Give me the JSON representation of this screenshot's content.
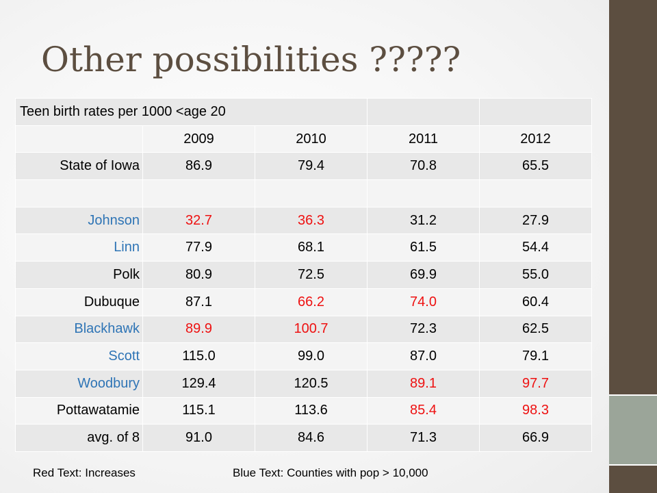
{
  "slide": {
    "title": "Other possibilities ?????"
  },
  "table": {
    "caption": "Teen birth rates per 1000 <age 20",
    "years": [
      "2009",
      "2010",
      "2011",
      "2012"
    ],
    "rows": [
      {
        "name": "State of Iowa",
        "name_color": "black",
        "values": [
          "86.9",
          "79.4",
          "70.8",
          "65.5"
        ],
        "value_colors": [
          "black",
          "black",
          "black",
          "black"
        ]
      },
      {
        "name": "",
        "name_color": "black",
        "values": [
          "",
          "",
          "",
          ""
        ],
        "value_colors": [
          "black",
          "black",
          "black",
          "black"
        ]
      },
      {
        "name": "Johnson",
        "name_color": "blue",
        "values": [
          "32.7",
          "36.3",
          "31.2",
          "27.9"
        ],
        "value_colors": [
          "red",
          "red",
          "black",
          "black"
        ]
      },
      {
        "name": "Linn",
        "name_color": "blue",
        "values": [
          "77.9",
          "68.1",
          "61.5",
          "54.4"
        ],
        "value_colors": [
          "black",
          "black",
          "black",
          "black"
        ]
      },
      {
        "name": "Polk",
        "name_color": "black",
        "values": [
          "80.9",
          "72.5",
          "69.9",
          "55.0"
        ],
        "value_colors": [
          "black",
          "black",
          "black",
          "black"
        ]
      },
      {
        "name": "Dubuque",
        "name_color": "black",
        "values": [
          "87.1",
          "66.2",
          "74.0",
          "60.4"
        ],
        "value_colors": [
          "black",
          "red",
          "red",
          "black"
        ]
      },
      {
        "name": "Blackhawk",
        "name_color": "blue",
        "values": [
          "89.9",
          "100.7",
          "72.3",
          "62.5"
        ],
        "value_colors": [
          "red",
          "red",
          "black",
          "black"
        ]
      },
      {
        "name": "Scott",
        "name_color": "blue",
        "values": [
          "115.0",
          "99.0",
          "87.0",
          "79.1"
        ],
        "value_colors": [
          "black",
          "black",
          "black",
          "black"
        ]
      },
      {
        "name": "Woodbury",
        "name_color": "blue",
        "values": [
          "129.4",
          "120.5",
          "89.1",
          "97.7"
        ],
        "value_colors": [
          "black",
          "black",
          "red",
          "red"
        ]
      },
      {
        "name": "Pottawatamie",
        "name_color": "black",
        "values": [
          "115.1",
          "113.6",
          "85.4",
          "98.3"
        ],
        "value_colors": [
          "black",
          "black",
          "red",
          "red"
        ]
      },
      {
        "name": "avg. of 8",
        "name_color": "black",
        "values": [
          "91.0",
          "84.6",
          "71.3",
          "66.9"
        ],
        "value_colors": [
          "black",
          "black",
          "black",
          "black"
        ]
      }
    ]
  },
  "legend": {
    "red_note": "Red Text: Increases",
    "blue_note": "Blue Text: Counties with pop > 10,000"
  },
  "colors": {
    "title": "#5c4e40",
    "blue": "#2e74b5",
    "red": "#ee1111",
    "band_dark": "#5c4e40",
    "band_light": "#9ba599"
  }
}
